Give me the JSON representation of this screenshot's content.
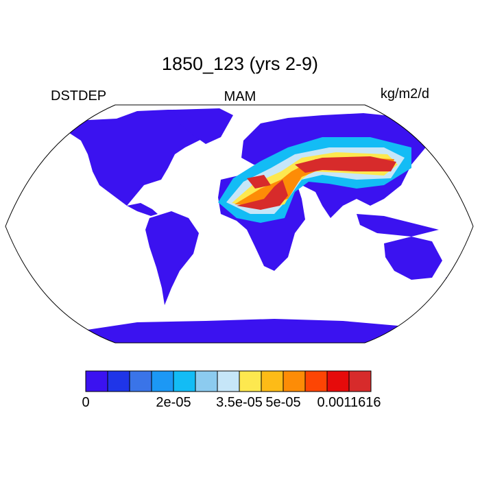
{
  "title": "1850_123 (yrs 2-9)",
  "left_label": "DSTDEP",
  "center_label": "MAM",
  "right_label": "kg/m2/d",
  "colorbar": {
    "colors": [
      "#3b12f0",
      "#1f35e8",
      "#3a74e8",
      "#1c98f5",
      "#13bcf5",
      "#8ccbef",
      "#c6e6f8",
      "#fde84f",
      "#fdbb17",
      "#fd8c06",
      "#fd4504",
      "#e60b0b",
      "#d72b2b"
    ],
    "tick_labels": [
      "0",
      "2e-05",
      "3.5e-05",
      "5e-05",
      "0.0011616"
    ]
  },
  "map_colors": {
    "ocean": "#ffffff",
    "land_low": "#3b12f0",
    "mid": "#13bcf5",
    "light": "#c6e6f8",
    "yellow": "#fde84f",
    "orange": "#fd8c06",
    "red": "#d72b2b"
  }
}
